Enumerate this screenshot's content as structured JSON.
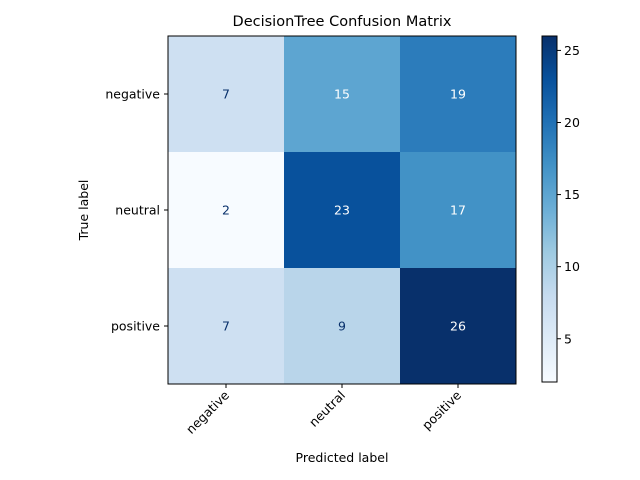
{
  "chart_data": {
    "type": "heatmap",
    "title": "DecisionTree Confusion Matrix",
    "xlabel": "Predicted label",
    "ylabel": "True label",
    "x_categories": [
      "negative",
      "neutral",
      "positive"
    ],
    "y_categories": [
      "negative",
      "neutral",
      "positive"
    ],
    "values": [
      [
        7,
        15,
        19
      ],
      [
        2,
        23,
        17
      ],
      [
        7,
        9,
        26
      ]
    ],
    "colormap": "Blues",
    "colorbar": {
      "range": [
        2,
        26
      ],
      "ticks": [
        5,
        10,
        15,
        20,
        25
      ]
    }
  }
}
